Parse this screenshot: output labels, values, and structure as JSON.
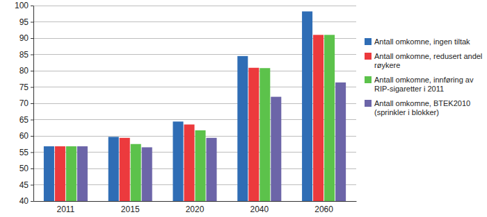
{
  "chart_data": {
    "type": "bar",
    "categories": [
      "2011",
      "2015",
      "2020",
      "2040",
      "2060"
    ],
    "series": [
      {
        "name": "Antall omkomne, ingen tiltak",
        "color": "#2f6db5",
        "values": [
          56.8,
          59.7,
          64.4,
          84.5,
          98.2
        ]
      },
      {
        "name": "Antall omkomne, redusert andel røykere",
        "color": "#ec3a3d",
        "values": [
          56.8,
          59.4,
          63.5,
          80.9,
          91.0
        ]
      },
      {
        "name": "Antall omkomne, innføring av RIP-sigaretter i 2011",
        "color": "#5cc24b",
        "values": [
          56.8,
          57.5,
          61.7,
          80.8,
          91.0
        ]
      },
      {
        "name": "Antall omkomne, BTEK2010 (sprinkler i blokker)",
        "color": "#6c65a8",
        "values": [
          56.8,
          56.5,
          59.4,
          72.0,
          76.4
        ]
      }
    ],
    "ylim": [
      40,
      100
    ],
    "yticks": [
      40,
      45,
      50,
      55,
      60,
      65,
      70,
      75,
      80,
      85,
      90,
      95,
      100
    ],
    "grid": true,
    "legend": "right"
  }
}
